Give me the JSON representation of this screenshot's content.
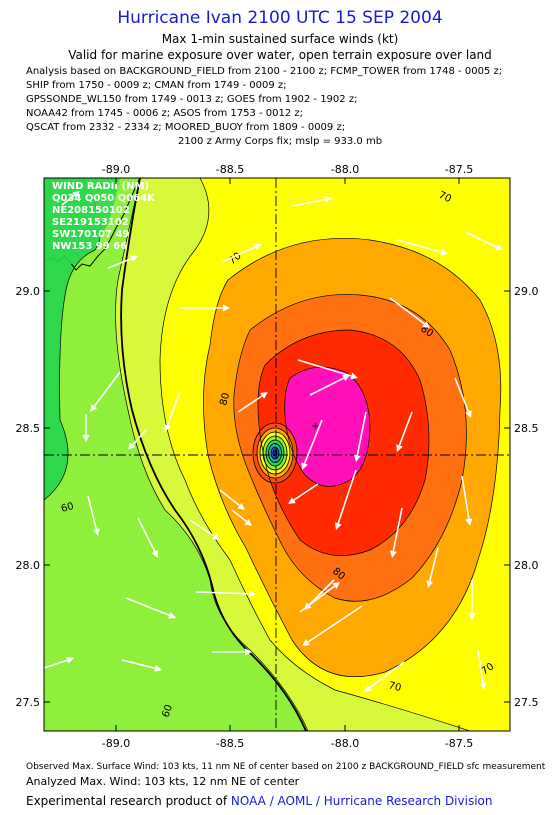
{
  "header": {
    "title": "Hurricane Ivan 2100 UTC 15 SEP 2004",
    "subtitle1": "Max 1-min sustained surface winds (kt)",
    "subtitle2": "Valid for marine exposure over water, open terrain exposure over land",
    "analysis_lines": [
      "Analysis based on  BACKGROUND_FIELD from 2100 - 2100 z;  FCMP_TOWER from 1748 - 0005 z;",
      "SHIP from 1750 - 0009 z;  CMAN from 1749 - 0009 z;",
      "GPSSONDE_WL150 from 1749 - 0013 z;  GOES from 1902 - 1902 z;",
      "NOAA42 from 1745 - 0006 z;  ASOS from 1753 - 0012 z;",
      "QSCAT from 2332 - 2334 z;  MOORED_BUOY from 1809 - 0009 z;"
    ],
    "fix_line": "2100 z Army Corps fix; mslp = 933.0 mb"
  },
  "map": {
    "lon_ticks": [
      "-89.0",
      "-88.5",
      "-88.0",
      "-87.5"
    ],
    "lat_ticks": [
      "29.0",
      "28.5",
      "28.0",
      "27.5"
    ],
    "lon_range": [
      -89.33,
      -87.28
    ],
    "lat_range": [
      27.4,
      29.41
    ],
    "center": {
      "lon": -88.3,
      "lat": 28.4
    },
    "contour_labels": [
      "70",
      "70",
      "80",
      "80",
      "80",
      "70",
      "70",
      "60",
      "60"
    ],
    "wind_radii": {
      "title": "WIND RADII (NM)",
      "lines": [
        "Q034 Q050 Q064K",
        "NE208150102",
        "SE219153102",
        "SW170107 49",
        "NW153 99 66"
      ]
    },
    "colors": {
      "green": "#2ed84a",
      "lightgreen": "#8ef03a",
      "yellowgreen": "#d8f83a",
      "yellow": "#ffff00",
      "orange": "#ffa800",
      "darkorange": "#ff7010",
      "red": "#ff2a00",
      "magenta": "#ff10b8"
    }
  },
  "footer": {
    "observed": "Observed Max. Surface Wind: 103 kts, 11 nm NE of center based on 2100 z BACKGROUND_FIELD sfc measurement",
    "analyzed": "Analyzed Max. Wind: 103 kts, 12 nm NE of center",
    "product_prefix": "Experimental research product of ",
    "product_org": "NOAA / AOML / Hurricane Research Division"
  }
}
